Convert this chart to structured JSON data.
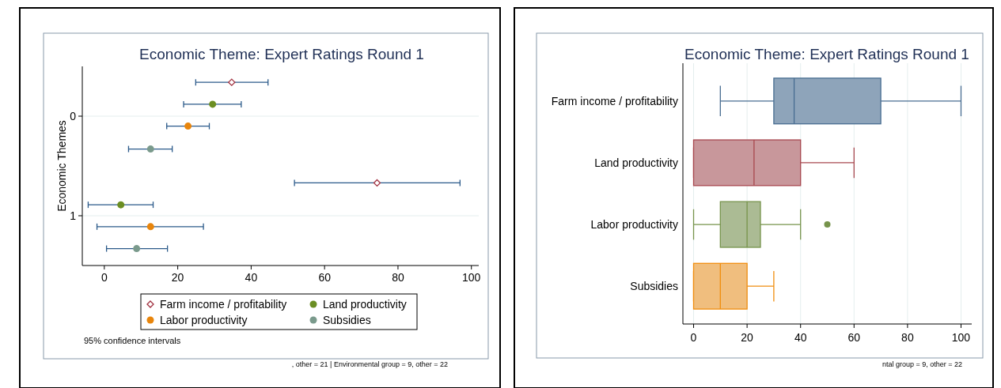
{
  "chart_data": [
    {
      "type": "scatter",
      "title": "Economic Theme: Expert Ratings Round 1",
      "ylabel": "Economic Themes",
      "xlim": [
        -6,
        102
      ],
      "xticks": [
        0,
        20,
        40,
        60,
        80,
        100
      ],
      "ylim": [
        1.5,
        -0.5
      ],
      "yticks": [
        0,
        1
      ],
      "grid": "y",
      "legend": "bottom",
      "annotations": [
        "95% confidence intervals",
        ", other = 21   |   Environmental group = 9, other = 22"
      ],
      "series": [
        {
          "name": "Farm income / profitability",
          "color": "#a0303f",
          "marker": "diamond",
          "x": [
            34.7,
            74.3
          ],
          "values": [
            -0.34,
            0.67
          ],
          "xerrors": [
            [
              24.9,
              44.6
            ],
            [
              51.8,
              96.9
            ]
          ]
        },
        {
          "name": "Land productivity",
          "color": "#6b8e23",
          "marker": "circle",
          "x": [
            29.5,
            4.5
          ],
          "values": [
            -0.12,
            0.89
          ],
          "xerrors": [
            [
              21.6,
              37.3
            ],
            [
              -4.4,
              13.3
            ]
          ]
        },
        {
          "name": "Labor productivity",
          "color": "#e8850c",
          "marker": "circle",
          "x": [
            22.8,
            12.6
          ],
          "values": [
            0.1,
            1.11
          ],
          "xerrors": [
            [
              17.0,
              28.6
            ],
            [
              -2.0,
              27.0
            ]
          ]
        },
        {
          "name": "Subsidies",
          "color": "#7a9a8c",
          "marker": "circle",
          "x": [
            12.6,
            8.8
          ],
          "values": [
            0.33,
            1.33
          ],
          "xerrors": [
            [
              6.6,
              18.5
            ],
            [
              0.6,
              17.2
            ]
          ]
        }
      ]
    },
    {
      "type": "box",
      "orientation": "horizontal",
      "title": "Economic Theme: Expert Ratings Round 1",
      "categories": [
        "Farm income / profitability",
        "Land productivity",
        "Labor productivity",
        "Subsidies"
      ],
      "colors": [
        "#8ea4ba",
        "#c8979b",
        "#abbb94",
        "#f0be7e"
      ],
      "xlim": [
        -4,
        104
      ],
      "xticks": [
        0,
        20,
        40,
        60,
        80,
        100
      ],
      "grid": "x",
      "annotations": [
        "ntal group = 9, other = 22"
      ],
      "boxes": [
        {
          "low": 10,
          "q1": 30,
          "median": 37.6,
          "q3": 70,
          "high": 100
        },
        {
          "low": 0,
          "q1": 0,
          "median": 22.6,
          "q3": 40,
          "high": 60
        },
        {
          "low": 0,
          "q1": 10,
          "median": 20,
          "q3": 25,
          "high": 40,
          "outliers": [
            50
          ]
        },
        {
          "low": 0,
          "q1": 0,
          "median": 10,
          "q3": 20,
          "high": 30
        }
      ]
    }
  ]
}
